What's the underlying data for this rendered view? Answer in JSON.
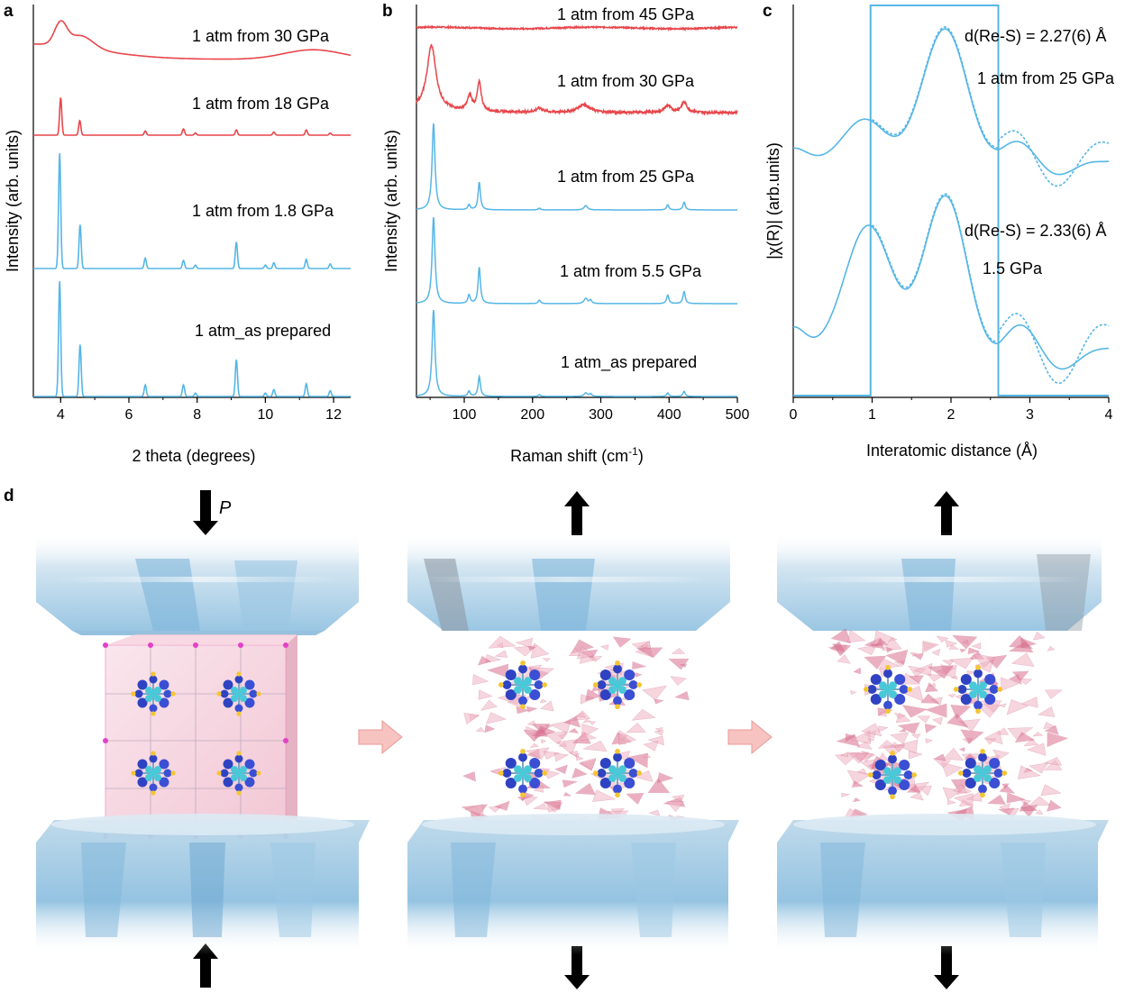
{
  "panel_letters": {
    "a": "a",
    "b": "b",
    "c": "c",
    "d": "d"
  },
  "colors": {
    "red": "#e8454a",
    "blue": "#55b6e6",
    "axis": "#000000",
    "pink_arrow": "#f4b3b0",
    "diamond": "#9fcbe8",
    "crystal_pink": "#f2b6c6",
    "atom_blue": "#3b4fd4",
    "atom_cyan": "#49c9d8",
    "atom_yellow": "#f5c531"
  },
  "chart_data": [
    {
      "id": "a",
      "type": "line",
      "xlabel": "2 theta (degrees)",
      "ylabel": "Intensity (arb. units)",
      "xlim": [
        3.2,
        12.5
      ],
      "xticks": [
        4,
        6,
        8,
        10,
        12
      ],
      "xtick_labels": [
        "4",
        "6",
        "8",
        "10",
        "12"
      ],
      "series": [
        {
          "name": "1 atm from 30 GPa",
          "color": "red",
          "kind": "amorphous_xrd",
          "broad_peaks": [
            {
              "x": 4.0,
              "h": 0.5,
              "w": 0.25
            },
            {
              "x": 4.6,
              "h": 0.28,
              "w": 0.5
            },
            {
              "x": 11.4,
              "h": 0.22,
              "w": 1.2
            }
          ],
          "background": 0.55
        },
        {
          "name": "1 atm from 18 GPa",
          "color": "red",
          "kind": "xrd",
          "peaks": [
            [
              4.0,
              0.72
            ],
            [
              4.56,
              0.28
            ],
            [
              6.48,
              0.08
            ],
            [
              7.6,
              0.12
            ],
            [
              7.95,
              0.04
            ],
            [
              9.15,
              0.1
            ],
            [
              10.25,
              0.06
            ],
            [
              11.2,
              0.1
            ],
            [
              11.9,
              0.04
            ]
          ]
        },
        {
          "name": "1 atm from 1.8 GPa",
          "color": "blue",
          "kind": "xrd",
          "peaks": [
            [
              3.97,
              1.0
            ],
            [
              4.57,
              0.38
            ],
            [
              6.48,
              0.09
            ],
            [
              7.6,
              0.07
            ],
            [
              7.95,
              0.03
            ],
            [
              9.15,
              0.23
            ],
            [
              10.0,
              0.03
            ],
            [
              10.25,
              0.05
            ],
            [
              11.2,
              0.08
            ],
            [
              11.9,
              0.04
            ]
          ]
        },
        {
          "name": "1 atm_as prepared",
          "color": "blue",
          "kind": "xrd",
          "peaks": [
            [
              3.97,
              1.0
            ],
            [
              4.57,
              0.45
            ],
            [
              6.48,
              0.1
            ],
            [
              7.6,
              0.1
            ],
            [
              7.95,
              0.03
            ],
            [
              9.15,
              0.32
            ],
            [
              10.0,
              0.03
            ],
            [
              10.25,
              0.06
            ],
            [
              11.2,
              0.11
            ],
            [
              11.9,
              0.05
            ]
          ]
        }
      ]
    },
    {
      "id": "b",
      "type": "line",
      "xlabel": "Raman shift (cm",
      "xlabel_sup": "-1",
      "xlabel_end": ")",
      "ylabel": "Intensity (arb. units)",
      "xlim": [
        30,
        500
      ],
      "xticks": [
        100,
        200,
        300,
        400,
        500
      ],
      "xtick_labels": [
        "100",
        "200",
        "300",
        "400",
        "500"
      ],
      "series": [
        {
          "name": "1 atm from 45 GPa",
          "color": "red",
          "kind": "flat"
        },
        {
          "name": "1 atm from 30 GPa",
          "color": "red",
          "kind": "raman_amorphous",
          "peaks": [
            [
              52,
              0.95,
              8
            ],
            [
              108,
              0.22,
              4
            ],
            [
              122,
              0.42,
              3.5
            ],
            [
              210,
              0.06,
              6
            ],
            [
              275,
              0.12,
              10
            ],
            [
              398,
              0.1,
              6
            ],
            [
              422,
              0.15,
              5
            ]
          ]
        },
        {
          "name": "1 atm from 25 GPa",
          "color": "blue",
          "kind": "raman",
          "peaks": [
            [
              55,
              1.0,
              2.5
            ],
            [
              107,
              0.06,
              2
            ],
            [
              122,
              0.32,
              2
            ],
            [
              210,
              0.02,
              2
            ],
            [
              278,
              0.05,
              3
            ],
            [
              398,
              0.06,
              2
            ],
            [
              422,
              0.09,
              2
            ]
          ]
        },
        {
          "name": "1 atm from 5.5 GPa",
          "color": "blue",
          "kind": "raman",
          "peaks": [
            [
              55,
              1.0,
              2.5
            ],
            [
              107,
              0.1,
              2
            ],
            [
              122,
              0.42,
              2
            ],
            [
              210,
              0.04,
              2
            ],
            [
              278,
              0.06,
              3
            ],
            [
              285,
              0.04,
              2
            ],
            [
              398,
              0.1,
              2
            ],
            [
              422,
              0.14,
              2
            ]
          ]
        },
        {
          "name": "1 atm_as prepared",
          "color": "blue",
          "kind": "raman",
          "peaks": [
            [
              55,
              1.0,
              2.5
            ],
            [
              107,
              0.06,
              2
            ],
            [
              122,
              0.23,
              2
            ],
            [
              210,
              0.02,
              2
            ],
            [
              278,
              0.04,
              3
            ],
            [
              285,
              0.03,
              2
            ],
            [
              398,
              0.04,
              2
            ],
            [
              422,
              0.06,
              2
            ]
          ]
        }
      ]
    },
    {
      "id": "c",
      "type": "line",
      "xlabel": "Interatomic distance (Å)",
      "ylabel": "|χ(R)|  (arb.units)",
      "xlim": [
        0,
        4
      ],
      "xticks": [
        0,
        1,
        2,
        3,
        4
      ],
      "xtick_labels": [
        "0",
        "1",
        "2",
        "3",
        "4"
      ],
      "window": [
        0.98,
        2.6
      ],
      "series": [
        {
          "name": "1 atm from 25 GPa",
          "annotation": "d(Re-S) = 2.27(6) Å",
          "color": "blue"
        },
        {
          "name": "1.5 GPa",
          "annotation": "d(Re-S) = 2.33(6) Å",
          "color": "blue"
        }
      ]
    }
  ],
  "panel_d": {
    "pressure_label": "P",
    "stages": [
      "compressed crystal",
      "decompressed partially amorphous",
      "decompressed amorphous"
    ]
  }
}
